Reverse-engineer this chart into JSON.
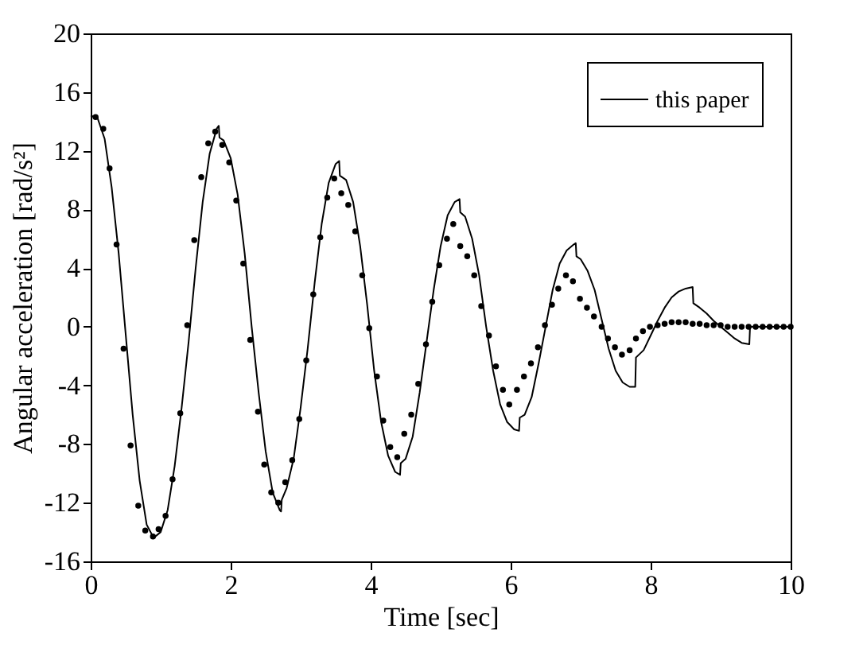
{
  "chart_data": {
    "type": "line",
    "xlabel": "Time [sec]",
    "ylabel": "Angular acceleration [rad/s²]",
    "xlim": [
      0,
      10
    ],
    "xticks": [
      0,
      2,
      4,
      6,
      8,
      10
    ],
    "ylim": [
      -16,
      20
    ],
    "yticks": [
      -16,
      -12,
      -8,
      -4,
      0,
      4,
      8,
      12,
      16,
      20
    ],
    "grid": false,
    "legend": "top right",
    "series": [
      {
        "name": "this paper",
        "type": "line",
        "color": "#000000",
        "marker": "none",
        "line_style": "solid",
        "x": [
          0,
          0.1,
          0.2,
          0.3,
          0.4,
          0.5,
          0.6,
          0.7,
          0.8,
          0.9,
          1.0,
          1.1,
          1.2,
          1.3,
          1.4,
          1.5,
          1.6,
          1.7,
          1.8,
          1.83,
          1.84,
          1.9,
          2.0,
          2.1,
          2.2,
          2.3,
          2.4,
          2.5,
          2.6,
          2.7,
          2.72,
          2.73,
          2.8,
          2.9,
          3.0,
          3.1,
          3.2,
          3.3,
          3.4,
          3.5,
          3.55,
          3.56,
          3.65,
          3.75,
          3.85,
          3.95,
          4.05,
          4.15,
          4.25,
          4.35,
          4.42,
          4.43,
          4.5,
          4.6,
          4.7,
          4.8,
          4.9,
          5.0,
          5.1,
          5.2,
          5.27,
          5.28,
          5.35,
          5.45,
          5.55,
          5.65,
          5.75,
          5.85,
          5.95,
          6.05,
          6.12,
          6.13,
          6.2,
          6.3,
          6.4,
          6.5,
          6.6,
          6.7,
          6.8,
          6.9,
          6.93,
          6.94,
          7.0,
          7.1,
          7.2,
          7.3,
          7.4,
          7.5,
          7.6,
          7.7,
          7.78,
          7.79,
          7.9,
          8.0,
          8.1,
          8.2,
          8.3,
          8.4,
          8.5,
          8.6,
          8.61,
          8.7,
          8.8,
          8.9,
          9.0,
          9.1,
          9.2,
          9.3,
          9.41,
          9.42,
          10
        ],
        "values": [
          14.4,
          14.2,
          12.8,
          9.5,
          5,
          -0.5,
          -6,
          -10.5,
          -13.5,
          -14.4,
          -14,
          -12.5,
          -9.5,
          -5.5,
          -1,
          4,
          8.5,
          11.8,
          13.5,
          13.7,
          12.9,
          12.7,
          11.5,
          9,
          5,
          0,
          -4.5,
          -8.5,
          -11.3,
          -12.5,
          -12.6,
          -11.8,
          -11,
          -9,
          -5.5,
          -1.5,
          3,
          7,
          9.8,
          11.1,
          11.3,
          10.3,
          10,
          8.5,
          5.5,
          1.5,
          -3,
          -6.5,
          -8.8,
          -9.9,
          -10.1,
          -9.3,
          -9,
          -7.5,
          -4.5,
          -1,
          2.5,
          5.5,
          7.6,
          8.5,
          8.7,
          7.8,
          7.5,
          6,
          3.5,
          0,
          -3,
          -5.3,
          -6.5,
          -7,
          -7.1,
          -6.2,
          -6,
          -4.8,
          -2.5,
          0,
          2.5,
          4.3,
          5.2,
          5.6,
          5.7,
          4.8,
          4.6,
          3.8,
          2.5,
          0.5,
          -1.5,
          -3,
          -3.8,
          -4.1,
          -4.1,
          -2.1,
          -1.6,
          -0.6,
          0.4,
          1.3,
          2,
          2.4,
          2.6,
          2.7,
          1.6,
          1.3,
          0.9,
          0.4,
          0,
          -0.4,
          -0.8,
          -1.1,
          -1.2,
          0,
          0
        ]
      },
      {
        "type": "scatter",
        "color": "#000000",
        "marker": "circle",
        "x": [
          0.07,
          0.18,
          0.27,
          0.37,
          0.47,
          0.57,
          0.68,
          0.78,
          0.89,
          0.97,
          1.07,
          1.17,
          1.28,
          1.38,
          1.48,
          1.58,
          1.68,
          1.78,
          1.88,
          1.98,
          2.08,
          2.18,
          2.28,
          2.39,
          2.48,
          2.58,
          2.68,
          2.78,
          2.88,
          2.98,
          3.08,
          3.18,
          3.28,
          3.38,
          3.48,
          3.58,
          3.68,
          3.78,
          3.88,
          3.98,
          4.09,
          4.18,
          4.28,
          4.38,
          4.48,
          4.58,
          4.68,
          4.79,
          4.88,
          4.98,
          5.09,
          5.18,
          5.28,
          5.38,
          5.48,
          5.58,
          5.69,
          5.79,
          5.89,
          5.98,
          6.09,
          6.19,
          6.29,
          6.39,
          6.49,
          6.59,
          6.68,
          6.79,
          6.89,
          6.99,
          7.09,
          7.19,
          7.3,
          7.39,
          7.49,
          7.59,
          7.7,
          7.79,
          7.89,
          7.99,
          8.1,
          8.2,
          8.3,
          8.4,
          8.5,
          8.6,
          8.7,
          8.8,
          8.9,
          9.0,
          9.1,
          9.2,
          9.3,
          9.4,
          9.5,
          9.6,
          9.7,
          9.8,
          9.9,
          10.0
        ],
        "values": [
          14.3,
          13.5,
          10.8,
          5.6,
          -1.5,
          -8.1,
          -12.2,
          -13.9,
          -14.3,
          -13.8,
          -12.9,
          -10.4,
          -5.9,
          0.1,
          5.9,
          10.2,
          12.5,
          13.3,
          12.4,
          11.2,
          8.6,
          4.3,
          -0.9,
          -5.8,
          -9.4,
          -11.3,
          -12,
          -10.6,
          -9.1,
          -6.3,
          -2.3,
          2.2,
          6.1,
          8.8,
          10.1,
          9.1,
          8.3,
          6.5,
          3.5,
          -0.1,
          -3.4,
          -6.4,
          -8.2,
          -8.9,
          -7.3,
          -6,
          -3.9,
          -1.2,
          1.7,
          4.2,
          6,
          7,
          5.5,
          4.8,
          3.5,
          1.4,
          -0.6,
          -2.7,
          -4.3,
          -5.3,
          -4.3,
          -3.4,
          -2.5,
          -1.4,
          0.1,
          1.5,
          2.6,
          3.5,
          3.1,
          1.9,
          1.3,
          0.7,
          0,
          -0.8,
          -1.4,
          -1.9,
          -1.6,
          -0.8,
          -0.3,
          0,
          0.1,
          0.2,
          0.3,
          0.3,
          0.3,
          0.2,
          0.2,
          0.1,
          0.1,
          0.1,
          0,
          0,
          0,
          0,
          0,
          0,
          0,
          0,
          0,
          0
        ]
      }
    ]
  }
}
